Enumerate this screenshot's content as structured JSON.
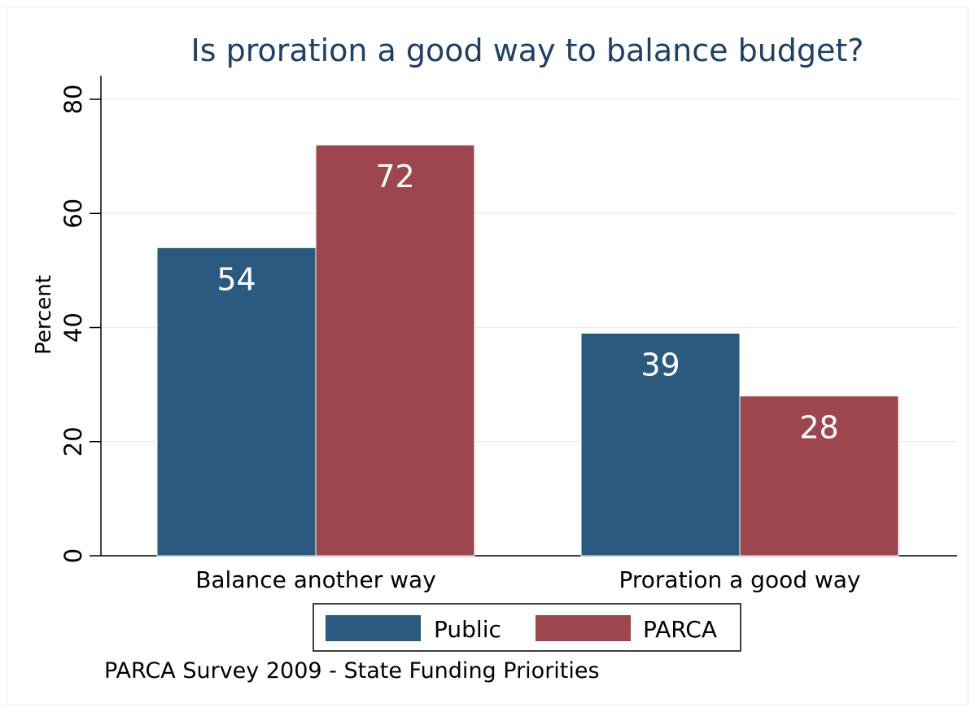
{
  "chart_data": {
    "type": "bar",
    "title": "Is proration a good way to balance budget?",
    "ylabel": "Percent",
    "xlabel": "",
    "categories": [
      "Balance another way",
      "Proration a good way"
    ],
    "series": [
      {
        "name": "Public",
        "color": "#2a5a7f",
        "values": [
          54,
          39
        ]
      },
      {
        "name": "PARCA",
        "color": "#9e464d",
        "values": [
          72,
          28
        ]
      }
    ],
    "ylim": [
      0,
      80
    ],
    "yticks": [
      0,
      20,
      40,
      60,
      80
    ],
    "grid": true,
    "legend_position": "bottom",
    "note": "PARCA Survey 2009 - State Funding Priorities"
  }
}
